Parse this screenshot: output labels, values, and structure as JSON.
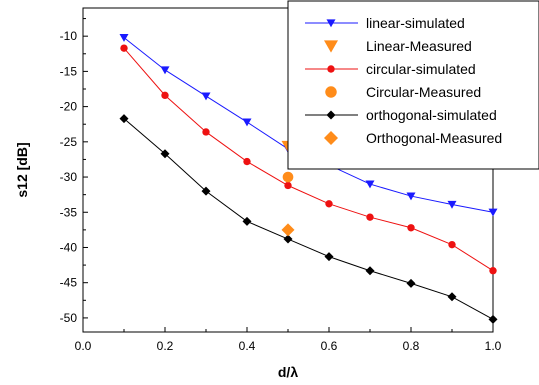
{
  "chart_data": {
    "type": "line",
    "title": "",
    "xlabel": "d/λ",
    "ylabel": "s12 [dB]",
    "xlim": [
      0.0,
      1.0
    ],
    "ylim": [
      -52,
      -6
    ],
    "xticks": [
      0.0,
      0.2,
      0.4,
      0.6,
      0.8,
      1.0
    ],
    "xtick_labels": [
      "0.0",
      "0.2",
      "0.4",
      "0.6",
      "0.8",
      "1.0"
    ],
    "yticks": [
      -10,
      -15,
      -20,
      -25,
      -30,
      -35,
      -40,
      -45,
      -50
    ],
    "ytick_labels": [
      "-10",
      "-15",
      "-20",
      "-25",
      "-30",
      "-35",
      "-40",
      "-45",
      "-50"
    ],
    "grid": false,
    "legend_position": "top-right",
    "series": [
      {
        "name": "linear-simulated",
        "kind": "line",
        "marker": "triangle-down",
        "color": "#1a1aff",
        "x": [
          0.1,
          0.2,
          0.3,
          0.4,
          0.5,
          0.6,
          0.7,
          0.8,
          0.9,
          1.0
        ],
        "y": [
          -10.2,
          -14.8,
          -18.5,
          -22.2,
          -26.0,
          -28.3,
          -31.0,
          -32.7,
          -33.9,
          -35.0
        ]
      },
      {
        "name": "Linear-Measured",
        "kind": "scatter",
        "marker": "triangle-down",
        "color": "#ff8c1a",
        "x": [
          0.5
        ],
        "y": [
          -25.6
        ]
      },
      {
        "name": "circular-simulated",
        "kind": "line",
        "marker": "circle",
        "color": "#ee1111",
        "x": [
          0.1,
          0.2,
          0.3,
          0.4,
          0.5,
          0.6,
          0.7,
          0.8,
          0.9,
          1.0
        ],
        "y": [
          -11.7,
          -18.4,
          -23.6,
          -27.8,
          -31.2,
          -33.8,
          -35.7,
          -37.2,
          -39.6,
          -43.3
        ]
      },
      {
        "name": "Circular-Measured",
        "kind": "scatter",
        "marker": "circle",
        "color": "#ff8c1a",
        "x": [
          0.5
        ],
        "y": [
          -30.0
        ]
      },
      {
        "name": "orthogonal-simulated",
        "kind": "line",
        "marker": "diamond",
        "color": "#000000",
        "x": [
          0.1,
          0.2,
          0.3,
          0.4,
          0.5,
          0.6,
          0.7,
          0.8,
          0.9,
          1.0
        ],
        "y": [
          -21.7,
          -26.7,
          -32.0,
          -36.3,
          -38.8,
          -41.3,
          -43.3,
          -45.1,
          -47.0,
          -50.2
        ]
      },
      {
        "name": "Orthogonal-Measured",
        "kind": "scatter",
        "marker": "diamond",
        "color": "#ff8c1a",
        "x": [
          0.5
        ],
        "y": [
          -37.5
        ]
      }
    ]
  }
}
